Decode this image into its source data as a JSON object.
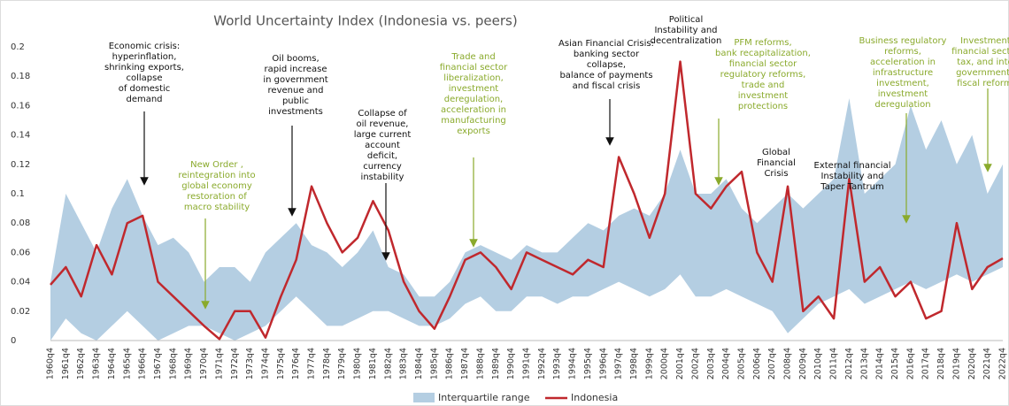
{
  "chart_data": {
    "type": "band-line",
    "title": "World Uncertainty Index (Indonesia vs. peers)",
    "categories": [
      "1960q4",
      "1961q4",
      "1962q4",
      "1963q4",
      "1964q4",
      "1965q4",
      "1966q4",
      "1967q4",
      "1968q4",
      "1969q4",
      "1970q4",
      "1971q4",
      "1972q4",
      "1973q4",
      "1974q4",
      "1975q4",
      "1976q4",
      "1977q4",
      "1978q4",
      "1979q4",
      "1980q4",
      "1981q4",
      "1982q4",
      "1983q4",
      "1984q4",
      "1985q4",
      "1986q4",
      "1987q4",
      "1988q4",
      "1989q4",
      "1990q4",
      "1991q4",
      "1992q4",
      "1993q4",
      "1994q4",
      "1995q4",
      "1996q4",
      "1997q4",
      "1998q4",
      "1999q4",
      "2000q4",
      "2001q4",
      "2002q4",
      "2003q4",
      "2004q4",
      "2005q4",
      "2006q4",
      "2007q4",
      "2008q4",
      "2009q4",
      "2010q4",
      "2011q4",
      "2012q4",
      "2013q4",
      "2014q4",
      "2015q4",
      "2016q4",
      "2017q4",
      "2018q4",
      "2019q4",
      "2020q4",
      "2021q4",
      "2022q4"
    ],
    "series": [
      {
        "name": "Interquartile range",
        "color": "#b4cee2",
        "values": [
          0.04,
          0.1,
          0.08,
          0.06,
          0.09,
          0.11,
          0.085,
          0.065,
          0.07,
          0.06,
          0.04,
          0.05,
          0.05,
          0.04,
          0.06,
          0.07,
          0.08,
          0.065,
          0.06,
          0.05,
          0.06,
          0.075,
          0.05,
          0.045,
          0.03,
          0.03,
          0.04,
          0.06,
          0.065,
          0.06,
          0.055,
          0.065,
          0.06,
          0.06,
          0.07,
          0.08,
          0.075,
          0.085,
          0.09,
          0.085,
          0.1,
          0.13,
          0.1,
          0.1,
          0.11,
          0.09,
          0.08,
          0.09,
          0.1,
          0.09,
          0.1,
          0.11,
          0.165,
          0.1,
          0.11,
          0.12,
          0.16,
          0.13,
          0.15,
          0.12,
          0.14,
          0.1,
          0.12
        ],
        "lower": [
          0,
          0.015,
          0.005,
          0,
          0.01,
          0.02,
          0.01,
          0,
          0.005,
          0.01,
          0.01,
          0.005,
          0,
          0.005,
          0.01,
          0.02,
          0.03,
          0.02,
          0.01,
          0.01,
          0.015,
          0.02,
          0.02,
          0.015,
          0.01,
          0.01,
          0.015,
          0.025,
          0.03,
          0.02,
          0.02,
          0.03,
          0.03,
          0.025,
          0.03,
          0.03,
          0.035,
          0.04,
          0.035,
          0.03,
          0.035,
          0.045,
          0.03,
          0.03,
          0.035,
          0.03,
          0.025,
          0.02,
          0.005,
          0.015,
          0.025,
          0.03,
          0.035,
          0.025,
          0.03,
          0.035,
          0.04,
          0.035,
          0.04,
          0.045,
          0.04,
          0.045,
          0.05
        ]
      },
      {
        "name": "Indonesia",
        "color": "#c0282d",
        "values": [
          0.038,
          0.05,
          0.03,
          0.065,
          0.045,
          0.08,
          0.085,
          0.04,
          0.03,
          0.02,
          0.01,
          0.001,
          0.02,
          0.02,
          0.002,
          0.03,
          0.055,
          0.105,
          0.08,
          0.06,
          0.07,
          0.095,
          0.075,
          0.04,
          0.02,
          0.008,
          0.03,
          0.055,
          0.06,
          0.05,
          0.035,
          0.06,
          0.055,
          0.05,
          0.045,
          0.055,
          0.05,
          0.125,
          0.1,
          0.07,
          0.1,
          0.19,
          0.1,
          0.09,
          0.105,
          0.115,
          0.06,
          0.04,
          0.105,
          0.02,
          0.03,
          0.015,
          0.11,
          0.04,
          0.05,
          0.03,
          0.04,
          0.015,
          0.02,
          0.08,
          0.035,
          0.05,
          0.056
        ]
      }
    ],
    "ylim": [
      0,
      0.2
    ],
    "yticks": [
      0,
      0.02,
      0.04,
      0.06,
      0.08,
      0.1,
      0.12,
      0.14,
      0.16,
      0.18,
      0.2
    ],
    "legend": "bottom",
    "annotations": [
      {
        "color": "#111111",
        "lines": [
          "Economic crisis:",
          "hyperinflation,",
          "shrinking exports,",
          "collapse",
          "of domestic",
          "demand"
        ]
      },
      {
        "color": "#8aaa2c",
        "lines": [
          "New Order ,",
          "reintegration into",
          "global economy",
          "restoration of",
          "macro stability"
        ]
      },
      {
        "color": "#111111",
        "lines": [
          "Oil booms,",
          "rapid increase",
          "in government",
          "revenue and",
          "public",
          "investments"
        ]
      },
      {
        "color": "#111111",
        "lines": [
          "Collapse of",
          "oil revenue,",
          "large current",
          "account",
          "deficit,",
          "currency",
          "instability"
        ]
      },
      {
        "color": "#8aaa2c",
        "lines": [
          "Trade and",
          "financial sector",
          "liberalization,",
          "investment",
          "deregulation,",
          "acceleration in",
          "manufacturing",
          "exports"
        ]
      },
      {
        "color": "#111111",
        "lines": [
          "Asian Financial Crisis:",
          "banking sector",
          "collapse,",
          "balance of payments",
          "and fiscal crisis"
        ]
      },
      {
        "color": "#111111",
        "lines": [
          "Political",
          "Instability and",
          "decentralization"
        ]
      },
      {
        "color": "#8aaa2c",
        "lines": [
          "PFM reforms,",
          "bank recapitalization,",
          "financial sector",
          "regulatory reforms,",
          "trade and",
          "investment",
          "protections"
        ]
      },
      {
        "color": "#111111",
        "lines": [
          "Global",
          "Financial",
          "Crisis"
        ]
      },
      {
        "color": "#111111",
        "lines": [
          "External financial",
          "Instability and",
          "Taper Tantrum"
        ]
      },
      {
        "color": "#8aaa2c",
        "lines": [
          "Business regulatory",
          "reforms,",
          "acceleration in",
          "infrastructure",
          "investment,",
          "investment",
          "deregulation"
        ]
      },
      {
        "color": "#8aaa2c",
        "lines": [
          "Investment,",
          "financial sector,",
          "tax, and inter",
          "governmental",
          "fiscal reforms"
        ]
      }
    ]
  }
}
